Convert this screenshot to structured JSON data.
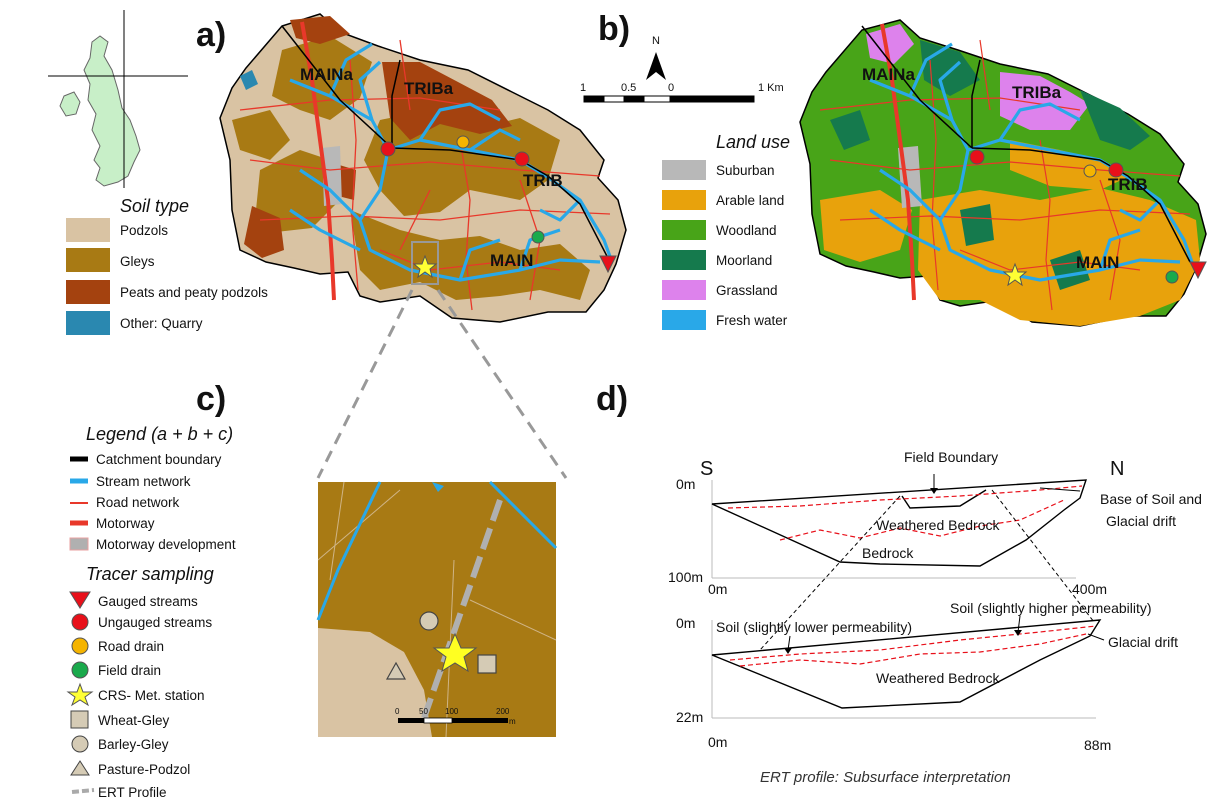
{
  "panels": {
    "a": "a)",
    "b": "b)",
    "c": "c)",
    "d": "d)"
  },
  "map_labels": {
    "maina": "MAINa",
    "triba": "TRIBa",
    "trib": "TRIB",
    "main": "MAIN"
  },
  "scale_bar": {
    "ticks": [
      "1",
      "0.5",
      "0",
      "1 Km"
    ],
    "north": "N"
  },
  "soil_legend": {
    "title": "Soil type",
    "items": [
      {
        "label": "Podzols",
        "color": "#d9c3a3"
      },
      {
        "label": "Gleys",
        "color": "#a87a14"
      },
      {
        "label": "Peats and peaty podzols",
        "color": "#a4420f"
      },
      {
        "label": "Other: Quarry",
        "color": "#2a88b0"
      }
    ]
  },
  "landuse_legend": {
    "title": "Land use",
    "items": [
      {
        "label": "Suburban",
        "color": "#b8b8b8"
      },
      {
        "label": "Arable land",
        "color": "#e8a20c"
      },
      {
        "label": "Woodland",
        "color": "#48a418"
      },
      {
        "label": "Moorland",
        "color": "#157a4d"
      },
      {
        "label": "Grassland",
        "color": "#dd82ec"
      },
      {
        "label": "Fresh water",
        "color": "#29a8e8"
      }
    ]
  },
  "main_legend": {
    "title": "Legend (a + b + c)",
    "lines": [
      {
        "label": "Catchment boundary",
        "color": "#000000"
      },
      {
        "label": "Stream network",
        "color": "#29a8e8"
      },
      {
        "label": "Road network",
        "color": "#e8382a"
      },
      {
        "label": "Motorway",
        "color": "#e8382a"
      },
      {
        "label": "Motorway development",
        "color": "#b0b0b0"
      }
    ],
    "tracer_title": "Tracer sampling",
    "tracer": [
      {
        "label": "Gauged streams",
        "icon": "red-triangle-icon"
      },
      {
        "label": "Ungauged streams",
        "icon": "red-circle-icon"
      },
      {
        "label": "Road  drain",
        "icon": "orange-circle-icon"
      },
      {
        "label": "Field drain",
        "icon": "green-circle-icon"
      },
      {
        "label": "CRS- Met. station",
        "icon": "yellow-star-icon"
      },
      {
        "label": "Wheat-Gley",
        "icon": "square-icon"
      },
      {
        "label": "Barley-Gley",
        "icon": "circle-icon"
      },
      {
        "label": "Pasture-Podzol",
        "icon": "triangle-icon"
      },
      {
        "label": "ERT Profile",
        "icon": "dashed-line-icon"
      }
    ]
  },
  "inset_scale": [
    "0",
    "50",
    "100",
    "200",
    "m"
  ],
  "ert": {
    "top": {
      "s": "S",
      "n": "N",
      "field_boundary": "Field Boundary",
      "base_label_1": "Base of Soil and",
      "base_label_2": "Glacial drift",
      "weathered": "Weathered Bedrock",
      "bedrock": "Bedrock",
      "y_top": "0m",
      "y_bottom": "100m",
      "x_left": "0m",
      "x_right": "400m"
    },
    "bottom": {
      "soil_low": "Soil (slightly lower permeability)",
      "soil_high": "Soil (slightly higher permeability)",
      "glacial": "Glacial drift",
      "weathered": "Weathered Bedrock",
      "y_top": "0m",
      "y_bottom": "22m",
      "x_left": "0m",
      "x_right": "88m"
    },
    "caption": "ERT profile: Subsurface interpretation"
  }
}
